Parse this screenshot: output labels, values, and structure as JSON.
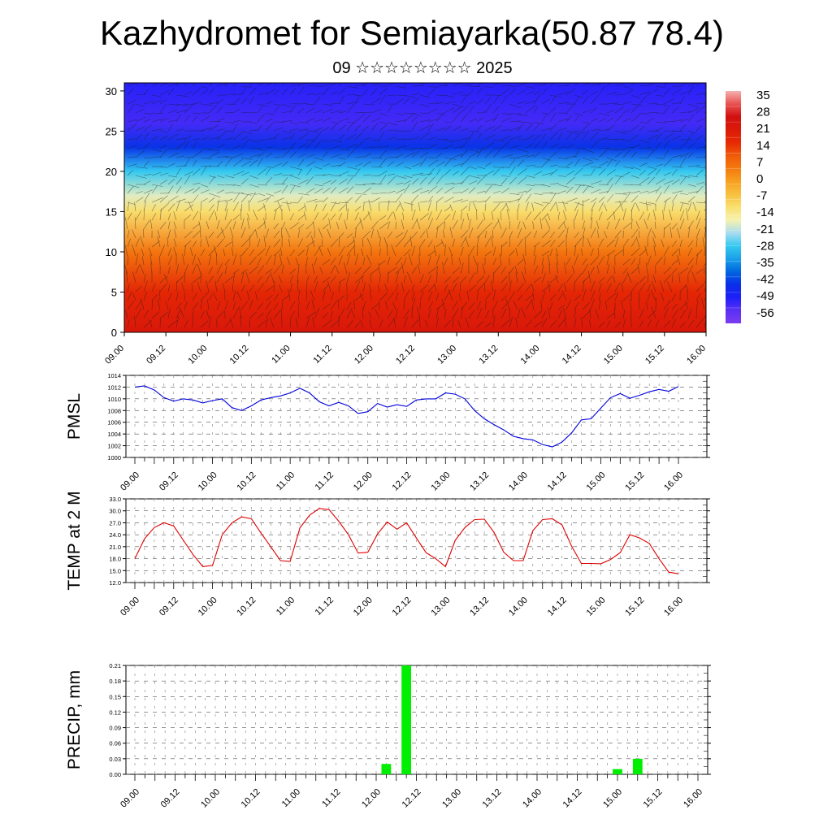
{
  "header": {
    "title": "Kazhydromet for Semiayarka(50.87 78.4)",
    "subtitle": "09 ☆☆☆☆☆☆☆☆ 2025"
  },
  "colors": {
    "pmsl_line": "#0000dd",
    "temp_line": "#e00000",
    "precip_bar": "#00ee00",
    "colorbar": [
      "#7a3cf0",
      "#5a30f5",
      "#1f1ff8",
      "#0a2ee8",
      "#0066e0",
      "#1aa0e8",
      "#34c8f0",
      "#a8dcf0",
      "#f6f2b0",
      "#f9e070",
      "#f8c040",
      "#f7a020",
      "#f47a10",
      "#ef5a08",
      "#e62a04",
      "#dc1a08",
      "#d11010",
      "#e85050",
      "#f5b0b0"
    ]
  },
  "chart_data": [
    {
      "type": "heatmap",
      "name": "cross-section",
      "x_ticks": [
        "09.00",
        "09.12",
        "10.00",
        "10.12",
        "11.00",
        "11.12",
        "12.00",
        "12.12",
        "13.00",
        "13.12",
        "14.00",
        "14.12",
        "15.00",
        "15.12",
        "16.00"
      ],
      "y_ticks": [
        "0",
        "5",
        "10",
        "15",
        "20",
        "25",
        "30"
      ],
      "ylim": [
        0,
        31
      ],
      "colorbar_labels": [
        "35",
        "28",
        "21",
        "14",
        "7",
        "0",
        "-7",
        "-14",
        "-21",
        "-28",
        "-35",
        "-42",
        "-49",
        "-56"
      ],
      "levels_profile": [
        {
          "level": 0,
          "value": 26
        },
        {
          "level": 5,
          "value": 20
        },
        {
          "level": 10,
          "value": 8
        },
        {
          "level": 15,
          "value": -10
        },
        {
          "level": 17,
          "value": -18
        },
        {
          "level": 20,
          "value": -28
        },
        {
          "level": 23,
          "value": -45
        },
        {
          "level": 26,
          "value": -55
        },
        {
          "level": 31,
          "value": -52
        }
      ]
    },
    {
      "type": "line",
      "ylabel": "PMSL",
      "ylim": [
        1000,
        1014
      ],
      "y_ticks": [
        "1000",
        "1002",
        "1004",
        "1006",
        "1008",
        "1010",
        "1012",
        "1014"
      ],
      "x_ticks": [
        "09.00",
        "09.12",
        "10.00",
        "10.12",
        "11.00",
        "11.12",
        "12.00",
        "12.12",
        "13.00",
        "13.12",
        "14.00",
        "14.12",
        "15.00",
        "15.12",
        "16.00"
      ],
      "x_max": 56,
      "values": [
        1012.0,
        1012.2,
        1011.5,
        1010.2,
        1009.6,
        1010.0,
        1009.8,
        1009.3,
        1009.7,
        1010.0,
        1008.5,
        1008.0,
        1008.8,
        1009.8,
        1010.2,
        1010.5,
        1011.0,
        1011.8,
        1011.0,
        1009.5,
        1008.8,
        1009.4,
        1008.8,
        1007.5,
        1007.8,
        1009.2,
        1008.6,
        1009.0,
        1008.7,
        1009.8,
        1010.0,
        1010.0,
        1011.0,
        1010.8,
        1010.0,
        1008.0,
        1006.6,
        1005.6,
        1004.7,
        1003.6,
        1003.2,
        1003.0,
        1002.2,
        1001.8,
        1002.6,
        1004.2,
        1006.4,
        1006.6,
        1008.4,
        1010.2,
        1010.9,
        1010.1,
        1010.6,
        1011.2,
        1011.6,
        1011.3,
        1012.1
      ]
    },
    {
      "type": "line",
      "ylabel": "TEMP at 2 M",
      "ylim": [
        12.0,
        33.0
      ],
      "y_ticks": [
        "12.0",
        "15.0",
        "18.0",
        "21.0",
        "24.0",
        "27.0",
        "30.0",
        "33.0"
      ],
      "x_ticks": [
        "09.00",
        "09.12",
        "10.00",
        "10.12",
        "11.00",
        "11.12",
        "12.00",
        "12.12",
        "13.00",
        "13.12",
        "14.00",
        "14.12",
        "15.00",
        "15.12",
        "16.00"
      ],
      "x_max": 56,
      "values": [
        18.0,
        23.0,
        25.8,
        27.0,
        26.2,
        22.6,
        19.0,
        16.0,
        16.3,
        24.0,
        27.0,
        28.5,
        28.0,
        24.4,
        21.0,
        17.5,
        17.3,
        25.7,
        28.9,
        30.6,
        30.3,
        27.4,
        24.0,
        19.4,
        19.6,
        24.2,
        27.2,
        25.4,
        27.0,
        23.2,
        19.5,
        18.0,
        16.0,
        22.6,
        25.8,
        27.8,
        27.9,
        24.6,
        19.6,
        17.5,
        17.5,
        25.0,
        27.8,
        28.0,
        26.5,
        21.1,
        16.8,
        16.8,
        16.7,
        17.8,
        19.5,
        24.0,
        23.2,
        21.8,
        18.0,
        14.6,
        14.2
      ]
    },
    {
      "type": "bar",
      "ylabel": "PRECIP, mm",
      "ylim": [
        0,
        0.21
      ],
      "y_ticks": [
        "0.00",
        "0.03",
        "0.06",
        "0.09",
        "0.12",
        "0.15",
        "0.18",
        "0.21"
      ],
      "x_ticks": [
        "09.00",
        "09.12",
        "10.00",
        "10.12",
        "11.00",
        "11.12",
        "12.00",
        "12.12",
        "13.00",
        "13.12",
        "14.00",
        "14.12",
        "15.00",
        "15.12",
        "16.00"
      ],
      "x_max": 56,
      "bars": [
        {
          "x": 25,
          "value": 0.02
        },
        {
          "x": 27,
          "value": 0.21
        },
        {
          "x": 48,
          "value": 0.01
        },
        {
          "x": 50,
          "value": 0.03
        }
      ]
    }
  ]
}
